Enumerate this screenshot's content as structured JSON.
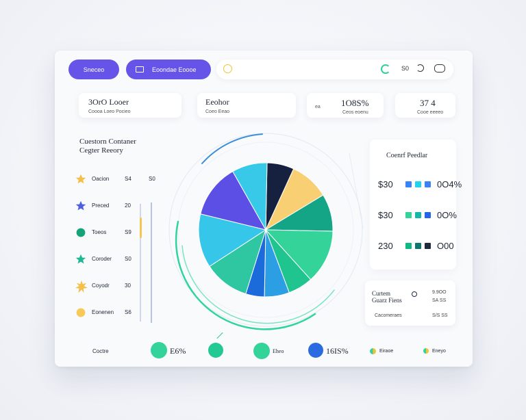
{
  "topbar": {
    "primary_button": "Sneceo",
    "secondary_button": "Eoondae Eoooe",
    "toolbar_right": "S0"
  },
  "stats": [
    {
      "title": "3OrO Looer",
      "sub": "Coooa Loeo Pocieo"
    },
    {
      "title": "Eeohor",
      "sub": "Coeo Eeao"
    },
    {
      "title": "1O8S%",
      "sub": "Ceos eoenu",
      "prefix": "ea"
    },
    {
      "title": "37 4",
      "sub": "Cooe eeeeo"
    }
  ],
  "left_panel": {
    "title_line1": "Cuestorn Contaner",
    "title_line2": "Cegter Reeory",
    "items": [
      {
        "label": "Oacion",
        "value": "S4",
        "extra": "S0",
        "icon": "star-icon",
        "color": "#f4c04a"
      },
      {
        "label": "Preced",
        "value": "20",
        "icon": "star-icon",
        "color": "#4f5fe0"
      },
      {
        "label": "Toeos",
        "value": "S9",
        "icon": "circle-icon",
        "color": "#17a37a"
      },
      {
        "label": "Coroder",
        "value": "S0",
        "icon": "star-icon",
        "color": "#1fb893"
      },
      {
        "label": "Coyodr",
        "value": "30",
        "icon": "burst-icon",
        "color": "#f4c04a"
      },
      {
        "label": "Eonenen",
        "value": "S6",
        "icon": "circle-icon",
        "color": "#f7c957"
      }
    ]
  },
  "chart_data": {
    "type": "pie",
    "title": "",
    "slices": [
      {
        "value": 6.5,
        "color": "#16213f"
      },
      {
        "value": 9.5,
        "color": "#f8cf73"
      },
      {
        "value": 9,
        "color": "#14a486"
      },
      {
        "value": 13,
        "color": "#34d399"
      },
      {
        "value": 6,
        "color": "#20c48f"
      },
      {
        "value": 6,
        "color": "#2c9ee4"
      },
      {
        "value": 4.5,
        "color": "#1c6bdb"
      },
      {
        "value": 11,
        "color": "#2ec7a2"
      },
      {
        "value": 13,
        "color": "#35c6e9"
      },
      {
        "value": 13,
        "color": "#5b4fe5"
      },
      {
        "value": 8.5,
        "color": "#38c9e8"
      }
    ]
  },
  "right_panel": {
    "title": "Coenrf Peedlar",
    "rows": [
      {
        "left": "$30",
        "right": "0O4%",
        "colors": [
          "#3b82f6",
          "#22d3ee",
          "#3b82f6"
        ]
      },
      {
        "left": "$30",
        "right": "0O%",
        "colors": [
          "#34d399",
          "#14b8a6",
          "#2563eb"
        ]
      },
      {
        "left": "230",
        "right": "O00",
        "colors": [
          "#10b981",
          "#0f766e",
          "#1e293b"
        ]
      }
    ]
  },
  "customer_box": {
    "title_line1": "Curtem",
    "title_line2": "Guarz Fiens",
    "sub": "Cacomeraes",
    "right_top": "9.9OO",
    "right_mid": "SA SS",
    "right_bottom": "S/S SS"
  },
  "bottom": {
    "label": "Coctre",
    "items": [
      {
        "text": "E6%",
        "color": "#34d399"
      },
      {
        "text": "",
        "color": "#22c993"
      },
      {
        "text": "Eheo",
        "color": "#34d399"
      },
      {
        "text": "16IS%",
        "color": "#2a6be0"
      }
    ],
    "small_items": [
      "Eiraoe",
      "Eneyo"
    ]
  }
}
